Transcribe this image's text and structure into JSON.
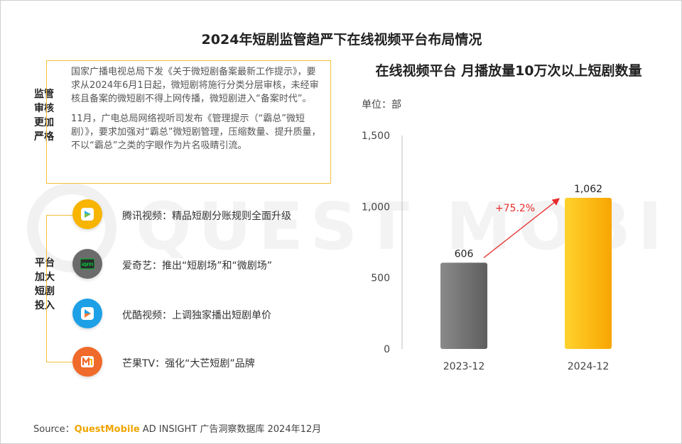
{
  "main_title": "2024年短剧监管趋严下在线视频平台布局情况",
  "watermark": "QUEST MOBILE",
  "regulation": {
    "label": "监管审核更加严格",
    "paragraphs": [
      "国家广播电视总局下发《关于微短剧备案最新工作提示》，要求从2024年6月1日起，微短剧将施行分类分层审核，未经审核且备案的微短剧不得上网传播，微短剧进入“备案时代”。",
      "11月，广电总局网络视听司发布《管理提示（“霸总”微短剧）》，要求加强对“霸总”微短剧管理，压缩数量、提升质量，不以“霸总”之类的字眼作为片名吸睛引流。"
    ]
  },
  "platforms": {
    "label": "平台加大短剧投入",
    "items": [
      {
        "icon": "tencent-video-icon",
        "color": "#f7b400",
        "text": "腾讯视频：精品短剧分账规则全面升级"
      },
      {
        "icon": "iqiyi-icon",
        "color": "#6b6b6b",
        "badge": "iQIYI",
        "text": "爱奇艺：推出“短剧场”和“微剧场”"
      },
      {
        "icon": "youku-icon",
        "color": "#1ea0e6",
        "text": "优酷视频：上调独家播出短剧单价"
      },
      {
        "icon": "mango-tv-icon",
        "color": "#f06a2b",
        "text": "芒果TV：强化“大芒短剧”品牌"
      }
    ]
  },
  "chart_data": {
    "type": "bar",
    "title": "在线视频平台 月播放量10万次以上短剧数量",
    "unit": "单位：部",
    "categories": [
      "2023-12",
      "2024-12"
    ],
    "values": [
      606,
      1062
    ],
    "value_labels": [
      "606",
      "1,062"
    ],
    "colors": [
      "#7a7a7a",
      "#ffc20e"
    ],
    "ylim": [
      0,
      1500
    ],
    "yticks": [
      0,
      500,
      1000,
      1500
    ],
    "ytick_labels": [
      "0",
      "500",
      "1,000",
      "1,500"
    ],
    "growth_label": "+75.2%",
    "growth_color": "#e52b2b",
    "grid": false
  },
  "source": {
    "prefix": "Source：",
    "brand": "QuestMobile",
    "rest": " AD INSIGHT 广告洞察数据库 2024年12月"
  }
}
